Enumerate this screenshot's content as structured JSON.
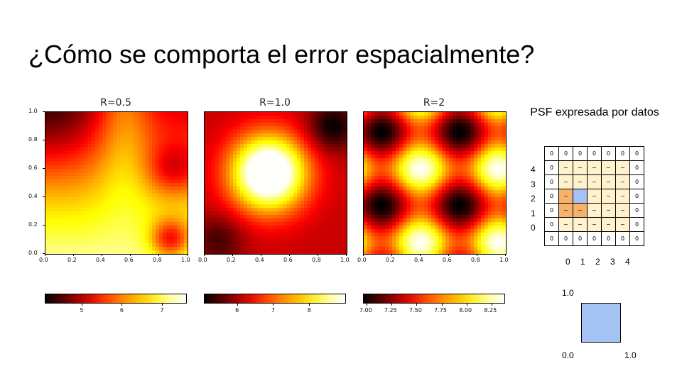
{
  "slide": {
    "title": "¿Cómo se comporta el error espacialmente?"
  },
  "chart_data": [
    {
      "type": "heatmap",
      "title": "R=0.5",
      "xlim": [
        0,
        1
      ],
      "ylim": [
        0,
        1
      ],
      "xticks": [
        "0.0",
        "0.2",
        "0.4",
        "0.6",
        "0.8",
        "1.0"
      ],
      "yticks": [
        "0.0",
        "0.2",
        "0.4",
        "0.6",
        "0.8",
        "1.0"
      ],
      "colorbar": {
        "range": [
          4.1,
          7.6
        ],
        "ticks": [
          "5",
          "6",
          "7"
        ],
        "tick_values": [
          5,
          6,
          7
        ],
        "colormap": "hot"
      }
    },
    {
      "type": "heatmap",
      "title": "R=1.0",
      "xlim": [
        0,
        1
      ],
      "ylim": [
        0,
        1
      ],
      "xticks": [
        "0.0",
        "0.2",
        "0.4",
        "0.6",
        "0.8",
        "1.0"
      ],
      "colorbar": {
        "range": [
          5.1,
          9.0
        ],
        "ticks": [
          "6",
          "7",
          "8"
        ],
        "tick_values": [
          6,
          7,
          8
        ],
        "colormap": "hot"
      }
    },
    {
      "type": "heatmap",
      "title": "R=2",
      "xlim": [
        0,
        1
      ],
      "ylim": [
        0,
        1
      ],
      "xticks": [
        "0.0",
        "0.2",
        "0.4",
        "0.6",
        "0.8",
        "1.0"
      ],
      "colorbar": {
        "range": [
          6.97,
          8.38
        ],
        "ticks": [
          "7.00",
          "7.25",
          "7.50",
          "7.75",
          "8.00",
          "8.25"
        ],
        "tick_values": [
          7.0,
          7.25,
          7.5,
          7.75,
          8.0,
          8.25
        ],
        "colormap": "hot"
      }
    }
  ],
  "psf": {
    "title": "PSF expresada por datos",
    "grid": [
      [
        "0",
        "0",
        "0",
        "0",
        "0",
        "0",
        "0"
      ],
      [
        "0",
        "~",
        "~",
        "~",
        "~",
        "~",
        "0"
      ],
      [
        "0",
        "~",
        "~",
        "~",
        "~",
        "~",
        "0"
      ],
      [
        "0",
        "~",
        "",
        "~",
        "~",
        "~",
        "0"
      ],
      [
        "0",
        "~",
        "~",
        "~",
        "~",
        "~",
        "0"
      ],
      [
        "0",
        "~",
        "~",
        "~",
        "~",
        "~",
        "0"
      ],
      [
        "0",
        "0",
        "0",
        "0",
        "0",
        "0",
        "0"
      ]
    ],
    "cell_colors": {
      "zero": "#ffffff",
      "tilde": "#fff2cc",
      "highlight": "#f6b26b",
      "center": "#a4c2f4"
    },
    "row_labels": [
      "4",
      "3",
      "2",
      "1",
      "0"
    ],
    "col_labels": [
      "0",
      "1",
      "2",
      "3",
      "4"
    ]
  },
  "unit_square": {
    "top_label": "1.0",
    "origin_label": "0.0",
    "right_label": "1.0",
    "color": "#a4c2f4"
  }
}
